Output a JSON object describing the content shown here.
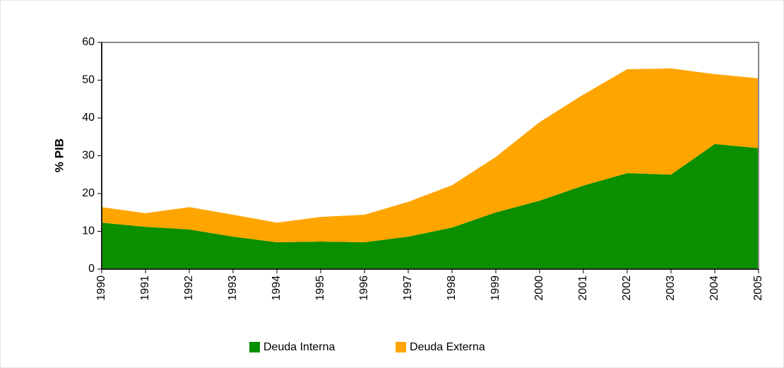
{
  "chart_data": {
    "type": "stacked_area",
    "y_label": "% PIB",
    "categories": [
      "1990",
      "1991",
      "1992",
      "1993",
      "1994",
      "1995",
      "1996",
      "1997",
      "1998",
      "1999",
      "2000",
      "2001",
      "2002",
      "2003",
      "2004",
      "2005"
    ],
    "series": [
      {
        "name": "Deuda Interna",
        "color": "#0a8f00",
        "values": [
          12.3,
          11.2,
          10.5,
          8.6,
          7.1,
          7.3,
          7.1,
          8.6,
          11.0,
          15.0,
          18.1,
          22.1,
          25.4,
          25.0,
          33.1,
          32.0
        ]
      },
      {
        "name": "Deuda Externa",
        "color": "#ffa500",
        "values": [
          4.1,
          3.6,
          5.9,
          5.8,
          5.2,
          6.5,
          7.3,
          9.2,
          11.2,
          14.7,
          20.8,
          24.1,
          27.5,
          28.1,
          18.5,
          18.5
        ]
      }
    ],
    "ylim": [
      0,
      60
    ],
    "yticks": [
      0,
      10,
      20,
      30,
      40,
      50,
      60
    ],
    "grid": false,
    "legend": "bottom"
  }
}
